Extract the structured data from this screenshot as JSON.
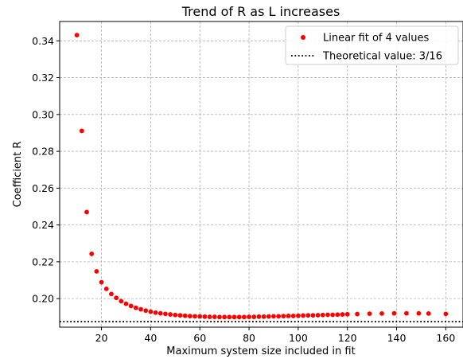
{
  "chart_data": {
    "type": "scatter",
    "title": "Trend of R as L increases",
    "xlabel": "Maximum system size included in fit",
    "ylabel": "Coefficient R",
    "xlim": [
      3,
      167
    ],
    "ylim": [
      0.1845,
      0.3505
    ],
    "xticks": [
      20,
      40,
      60,
      80,
      100,
      120,
      140,
      160
    ],
    "yticks": [
      0.2,
      0.22,
      0.24,
      0.26,
      0.28,
      0.3,
      0.32,
      0.34
    ],
    "grid": true,
    "legend_position": "top-right",
    "colors": {
      "points": "#ff0000",
      "reference_line": "#000000",
      "grid": "#b0b0b0"
    },
    "series": [
      {
        "name": "Linear fit of 4 values",
        "style": "dots",
        "x": [
          10,
          12,
          14,
          16,
          18,
          20,
          22,
          24,
          26,
          28,
          30,
          32,
          34,
          36,
          38,
          40,
          42,
          44,
          46,
          48,
          50,
          52,
          54,
          56,
          58,
          60,
          62,
          64,
          66,
          68,
          70,
          72,
          74,
          76,
          78,
          80,
          82,
          84,
          86,
          88,
          90,
          92,
          94,
          96,
          98,
          100,
          102,
          104,
          106,
          108,
          110,
          112,
          114,
          116,
          118,
          120,
          124,
          129,
          134,
          139,
          144,
          149,
          153,
          160
        ],
        "y": [
          0.3431,
          0.2911,
          0.247,
          0.2243,
          0.2148,
          0.2089,
          0.2053,
          0.2025,
          0.2004,
          0.1986,
          0.1972,
          0.196,
          0.195,
          0.1942,
          0.1935,
          0.1929,
          0.1924,
          0.192,
          0.1917,
          0.1914,
          0.1911,
          0.1909,
          0.1907,
          0.1905,
          0.1904,
          0.1903,
          0.1902,
          0.1901,
          0.1901,
          0.19,
          0.19,
          0.19,
          0.19,
          0.19,
          0.19,
          0.1901,
          0.1901,
          0.1902,
          0.1902,
          0.1903,
          0.1904,
          0.1904,
          0.1905,
          0.1906,
          0.1906,
          0.1907,
          0.1908,
          0.1909,
          0.1909,
          0.191,
          0.1911,
          0.1912,
          0.1912,
          0.1913,
          0.1914,
          0.1915,
          0.1916,
          0.1918,
          0.1919,
          0.192,
          0.192,
          0.192,
          0.1919,
          0.1917
        ]
      },
      {
        "name": "Theoretical value: 3/16",
        "style": "dotted-hline",
        "y": 0.1875
      }
    ]
  }
}
